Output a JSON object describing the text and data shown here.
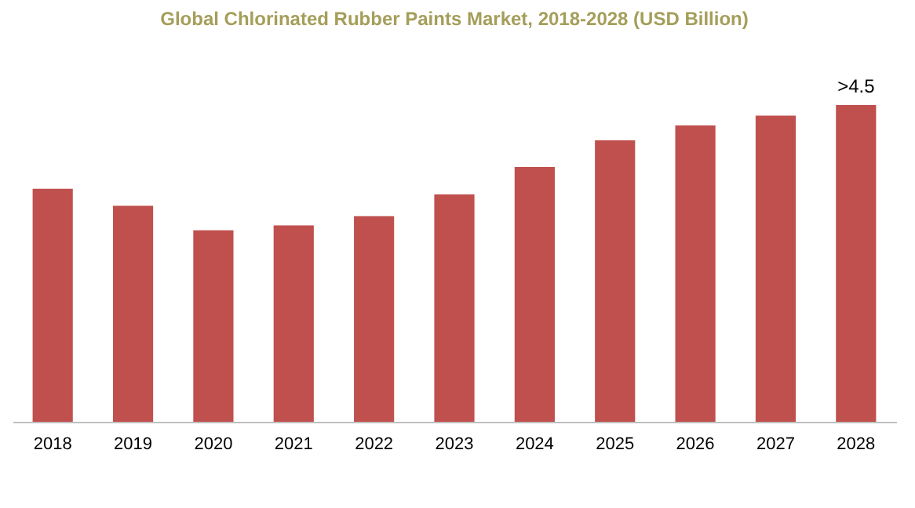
{
  "chart_data": {
    "type": "bar",
    "title": "Global Chlorinated Rubber Paints Market, 2018-2028 (USD Billion)",
    "categories": [
      "2018",
      "2019",
      "2020",
      "2021",
      "2022",
      "2023",
      "2024",
      "2025",
      "2026",
      "2027",
      "2028"
    ],
    "values": [
      3.31,
      3.07,
      2.72,
      2.79,
      2.92,
      3.23,
      3.62,
      4.0,
      4.21,
      4.35,
      4.5
    ],
    "value_labels": [
      null,
      null,
      null,
      null,
      null,
      null,
      null,
      null,
      null,
      null,
      ">4.5"
    ],
    "color": "#c0504d",
    "tick_labels": "x"
  }
}
